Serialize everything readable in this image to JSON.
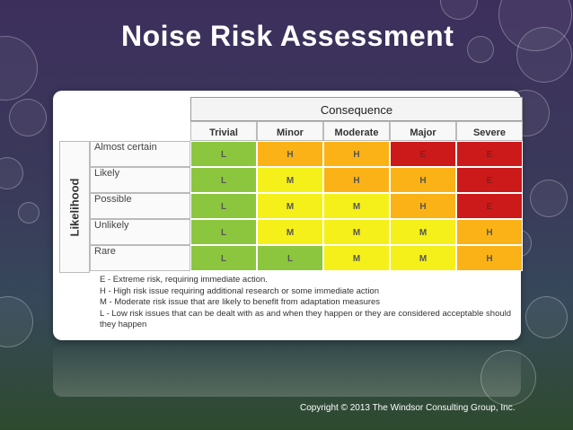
{
  "slide": {
    "title": "Noise Risk Assessment",
    "copyright": "Copyright © 2013 The Windsor Consulting Group, Inc."
  },
  "matrix": {
    "consequence_label": "Consequence",
    "likelihood_label": "Likelihood",
    "columns": [
      "Trivial",
      "Minor",
      "Moderate",
      "Major",
      "Severe"
    ],
    "rows": [
      {
        "label": "Almost certain",
        "cells": [
          "L",
          "H",
          "H",
          "E",
          "E"
        ]
      },
      {
        "label": "Likely",
        "cells": [
          "L",
          "M",
          "H",
          "H",
          "E"
        ]
      },
      {
        "label": "Possible",
        "cells": [
          "L",
          "M",
          "M",
          "H",
          "E"
        ]
      },
      {
        "label": "Unlikely",
        "cells": [
          "L",
          "M",
          "M",
          "M",
          "H"
        ]
      },
      {
        "label": "Rare",
        "cells": [
          "L",
          "L",
          "M",
          "M",
          "H"
        ]
      }
    ],
    "colors": {
      "L": "#8cc63f",
      "M": "#f5f01a",
      "H": "#fbb217",
      "E": "#cc1a1a"
    }
  },
  "legend": [
    "E - Extreme risk, requiring immediate action.",
    "H - High risk issue requiring additional research or some immediate action",
    "M - Moderate risk issue that are likely to benefit from adaptation measures",
    "L - Low risk issues that can be dealt with as and when they happen or they are considered acceptable should they happen"
  ]
}
